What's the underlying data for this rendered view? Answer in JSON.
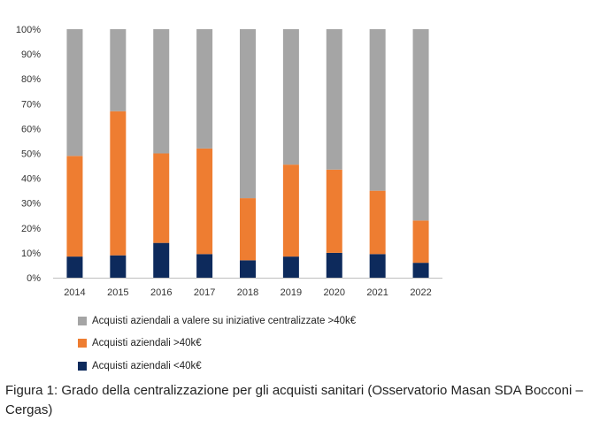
{
  "chart_data": {
    "type": "bar",
    "stacked": true,
    "categories": [
      "2014",
      "2015",
      "2016",
      "2017",
      "2018",
      "2019",
      "2020",
      "2021",
      "2022"
    ],
    "series": [
      {
        "name": "Acquisti aziendali <40k€",
        "color": "#0d2a5c",
        "values": [
          8.5,
          9,
          14,
          9.5,
          7,
          8.5,
          10,
          9.5,
          6
        ]
      },
      {
        "name": "Acquisti aziendali >40k€",
        "color": "#ee7d31",
        "values": [
          40.5,
          58,
          36,
          42.5,
          25,
          37,
          33.5,
          25.5,
          17
        ]
      },
      {
        "name": "Acquisti aziendali a valere su iniziative centralizzate >40k€",
        "color": "#a5a5a5",
        "values": [
          51,
          33,
          50,
          48,
          68,
          54.5,
          56.5,
          65,
          77
        ]
      }
    ],
    "yticks": [
      "0%",
      "10%",
      "20%",
      "30%",
      "40%",
      "50%",
      "60%",
      "70%",
      "80%",
      "90%",
      "100%"
    ],
    "ylim": [
      0,
      100
    ],
    "legend_position": "bottom",
    "grid": false
  },
  "legend": [
    {
      "label": "Acquisti aziendali a valere su iniziative centralizzate >40k€",
      "color": "#a5a5a5"
    },
    {
      "label": "Acquisti aziendali >40k€",
      "color": "#ee7d31"
    },
    {
      "label": "Acquisti aziendali <40k€",
      "color": "#0d2a5c"
    }
  ],
  "caption": "Figura 1: Grado della centralizzazione per gli acquisti sanitari (Osservatorio Masan SDA Bocconi – Cergas)"
}
